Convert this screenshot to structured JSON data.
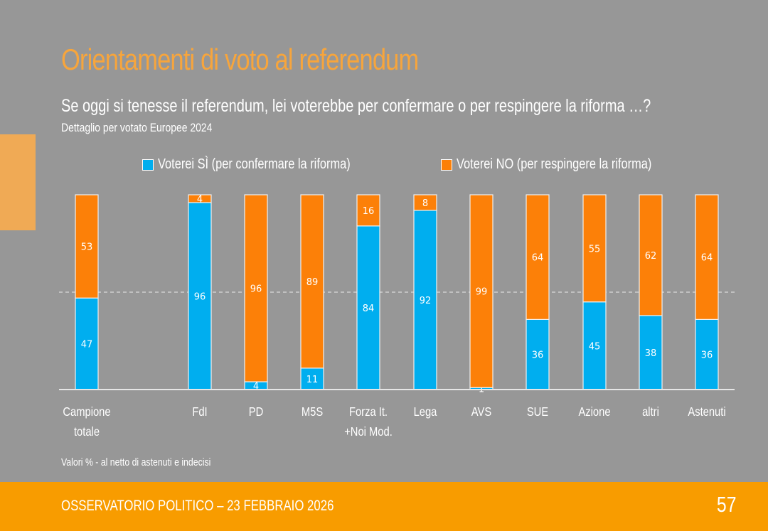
{
  "title": "Orientamenti di voto al referendum",
  "subtitle": "Se oggi si tenesse il referendum, lei voterebbe per confermare o per respingere la riforma …?",
  "detail": "Dettaglio per votato Europee 2024",
  "note": "Valori % - al netto di astenuti e indecisi",
  "footer": {
    "text": "OSSERVATORIO POLITICO – 23 FEBBRAIO 2026",
    "page": "57"
  },
  "colors": {
    "si": "#00AEEF",
    "no": "#FC8008",
    "title": "#F7A53C",
    "footer": "#F89C00",
    "background": "#979797"
  },
  "chart_data": {
    "type": "bar",
    "stacked": true,
    "categories": [
      [
        "Campione",
        "totale"
      ],
      [
        "FdI"
      ],
      [
        "PD"
      ],
      [
        "M5S"
      ],
      [
        "Forza It.",
        "+Noi Mod."
      ],
      [
        "Lega"
      ],
      [
        "AVS"
      ],
      [
        "SUE"
      ],
      [
        "Azione"
      ],
      [
        "altri"
      ],
      [
        "Astenuti"
      ]
    ],
    "series": [
      {
        "name": "Voterei SÌ (per confermare la riforma)",
        "values": [
          47,
          96,
          4,
          11,
          84,
          92,
          1,
          36,
          45,
          38,
          36
        ]
      },
      {
        "name": "Voterei NO (per respingere la riforma)",
        "values": [
          53,
          4,
          96,
          89,
          16,
          8,
          99,
          64,
          55,
          62,
          64
        ]
      }
    ],
    "ylim": [
      0,
      100
    ],
    "reference_line": 50,
    "legend": "top"
  }
}
